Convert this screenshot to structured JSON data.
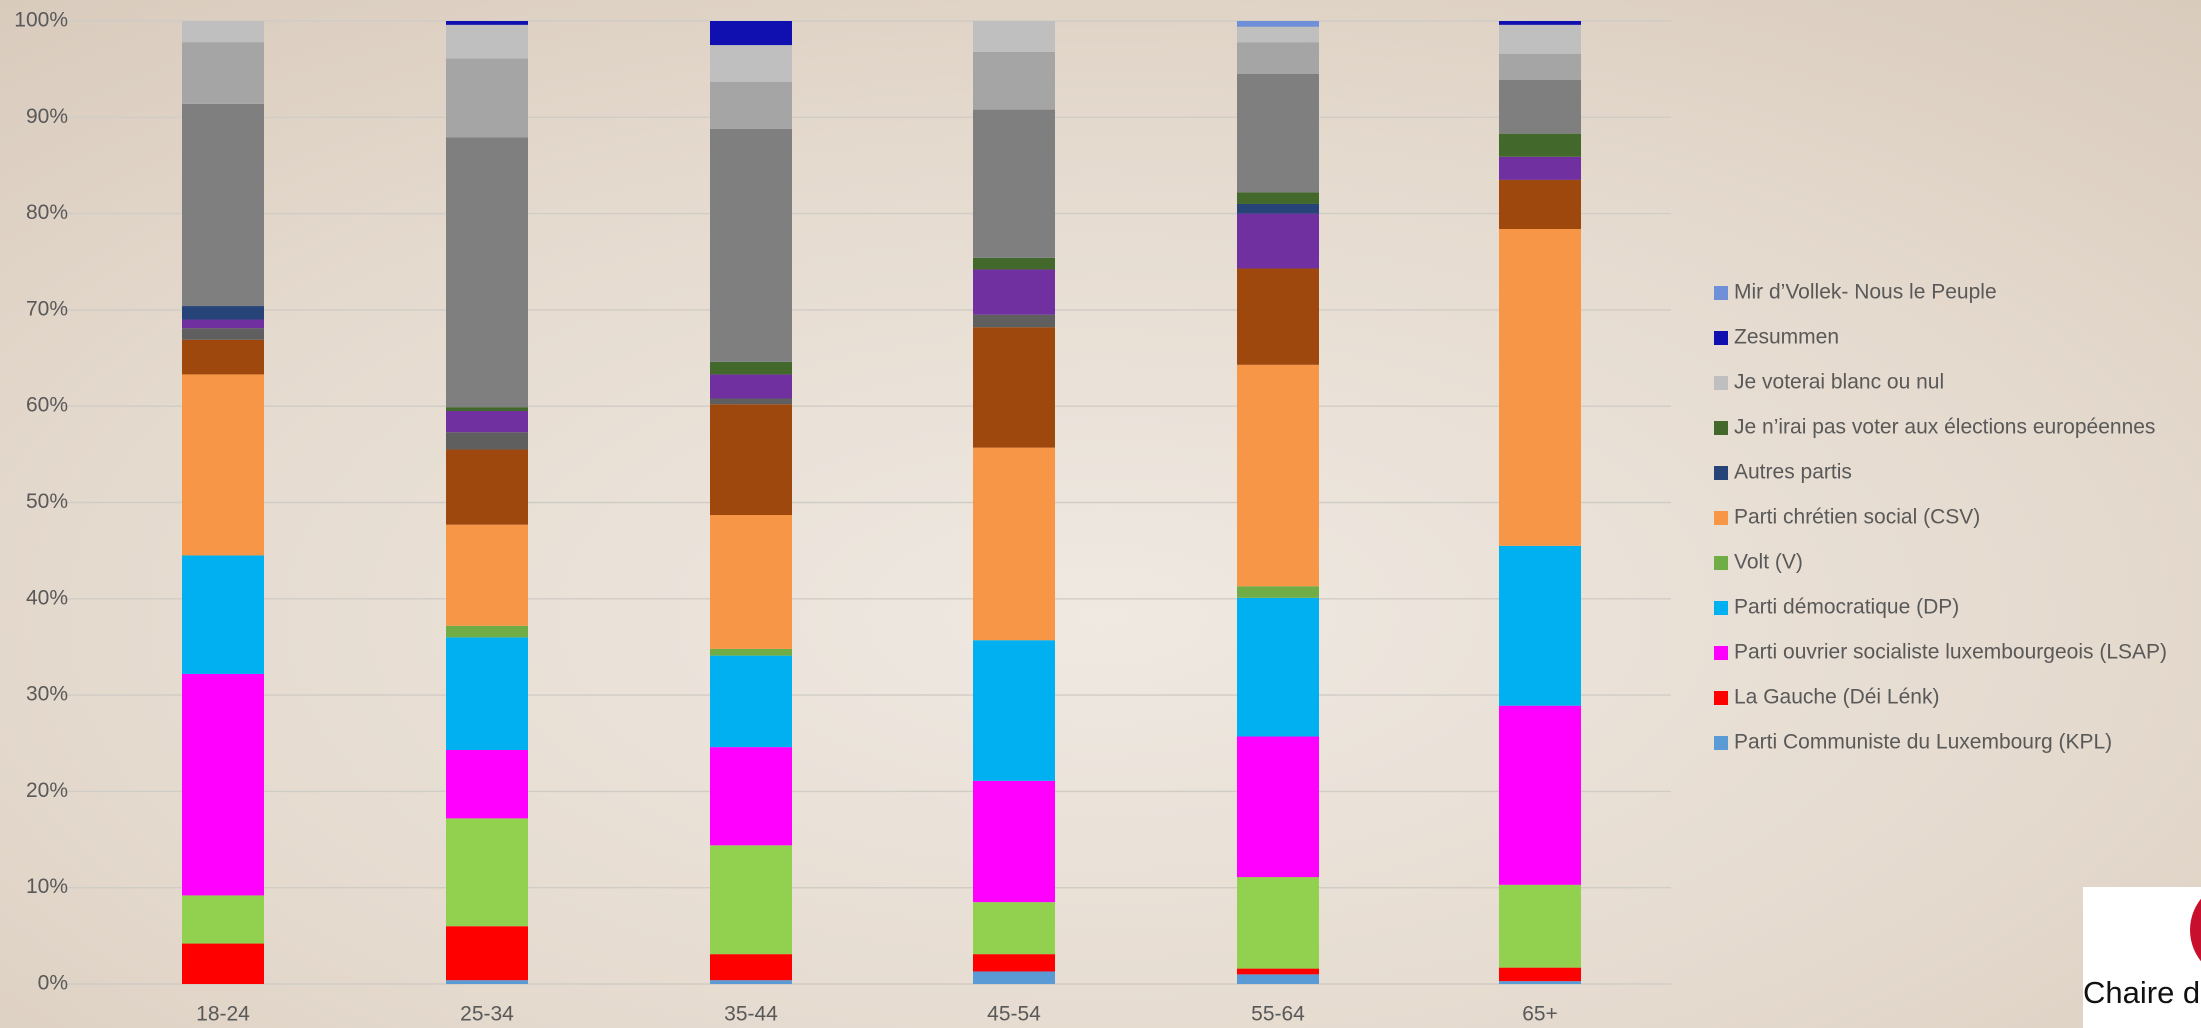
{
  "chart_data": {
    "type": "stacked_bar",
    "categories": [
      "18-24",
      "25-34",
      "35-44",
      "45-54",
      "55-64",
      "65+"
    ],
    "ylim": [
      0,
      100
    ],
    "yticks": [
      {
        "value": 0,
        "label": "0%"
      },
      {
        "value": 10,
        "label": "10%"
      },
      {
        "value": 20,
        "label": "20%"
      },
      {
        "value": 30,
        "label": "30%"
      },
      {
        "value": 40,
        "label": "40%"
      },
      {
        "value": 50,
        "label": "50%"
      },
      {
        "value": 60,
        "label": "60%"
      },
      {
        "value": 70,
        "label": "70%"
      },
      {
        "value": 80,
        "label": "80%"
      },
      {
        "value": 90,
        "label": "90%"
      },
      {
        "value": 100,
        "label": "100%"
      }
    ],
    "grid": true,
    "legend": "right",
    "series": [
      {
        "name": "Parti Communiste du Luxembourg (KPL)",
        "color": "#5b9bd5",
        "values": [
          0,
          0.4,
          0.4,
          1.3,
          1.0,
          0.3
        ]
      },
      {
        "name": "La Gauche (Déi Lénk)",
        "color": "#ff0000",
        "values": [
          4.2,
          5.6,
          2.7,
          1.8,
          0.6,
          1.4
        ]
      },
      {
        "color": "#92d050",
        "values": [
          5.0,
          11.2,
          11.3,
          5.4,
          9.5,
          8.6
        ]
      },
      {
        "name": "Parti ouvrier socialiste luxembourgeois (LSAP)",
        "color": "#ff00ff",
        "values": [
          23.0,
          7.1,
          10.2,
          12.6,
          14.6,
          18.6
        ]
      },
      {
        "name": "Parti démocratique (DP)",
        "color": "#00b0f0",
        "values": [
          12.3,
          11.7,
          9.5,
          14.6,
          14.4,
          16.6
        ]
      },
      {
        "name": "Volt (V)",
        "color": "#70ad47",
        "values": [
          0,
          1.2,
          0.7,
          0,
          1.2,
          0
        ]
      },
      {
        "name": "Parti chrétien social (CSV)",
        "color": "#f79646",
        "values": [
          18.8,
          10.5,
          13.9,
          20.0,
          23.0,
          32.9
        ]
      },
      {
        "color": "#9e480e",
        "values": [
          3.6,
          7.8,
          11.5,
          12.5,
          10.0,
          5.1
        ]
      },
      {
        "color": "#5f5f5f",
        "values": [
          1.2,
          1.8,
          0.6,
          1.3,
          0,
          0
        ]
      },
      {
        "color": "#7030a0",
        "values": [
          0.9,
          2.2,
          2.5,
          4.7,
          5.7,
          2.4
        ]
      },
      {
        "name": "Autres partis",
        "color": "#264478",
        "values": [
          1.4,
          0,
          0,
          0,
          1.0,
          0
        ]
      },
      {
        "name": "Je n’irai pas voter aux élections européennes",
        "color": "#43682b",
        "values": [
          0,
          0.4,
          1.3,
          1.2,
          1.2,
          2.4
        ]
      },
      {
        "color": "#7f7f7f",
        "values": [
          21.0,
          28.0,
          24.2,
          15.4,
          12.3,
          5.6
        ]
      },
      {
        "color": "#a5a5a5",
        "values": [
          6.4,
          8.2,
          4.9,
          6.0,
          3.3,
          2.7
        ]
      },
      {
        "name": "Je voterai blanc ou nul",
        "color": "#bfbfbf",
        "values": [
          2.2,
          3.5,
          3.8,
          3.2,
          1.6,
          3.0
        ]
      },
      {
        "name": "Zesummen",
        "color": "#1010b0",
        "values": [
          0,
          0.4,
          2.5,
          0,
          0,
          0.4
        ]
      },
      {
        "name": "Mir d’Vollek- Nous le Peuple",
        "color": "#6f8fd8",
        "values": [
          0,
          0,
          0,
          0,
          0.6,
          0
        ]
      }
    ]
  },
  "logo": {
    "text": "Chaire d"
  }
}
